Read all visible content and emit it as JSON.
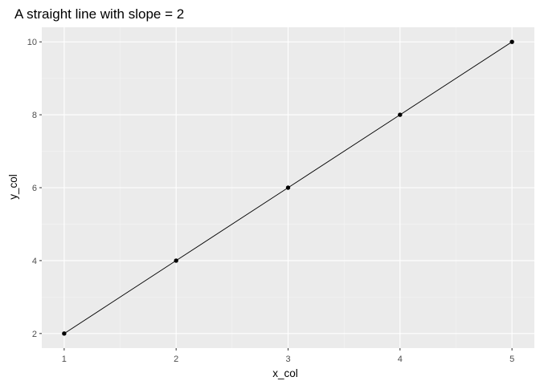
{
  "chart_data": {
    "type": "line",
    "title": "A straight line with slope = 2",
    "xlabel": "x_col",
    "ylabel": "y_col",
    "x": [
      1,
      2,
      3,
      4,
      5
    ],
    "series": [
      {
        "values": [
          2,
          4,
          6,
          8,
          10
        ],
        "markers": true
      }
    ],
    "xlim": [
      0.8,
      5.2
    ],
    "ylim": [
      1.6,
      10.4
    ],
    "xticks": [
      1,
      2,
      3,
      4,
      5
    ],
    "yticks": [
      2,
      4,
      6,
      8,
      10
    ],
    "xtick_labels": [
      "1",
      "2",
      "3",
      "4",
      "5"
    ],
    "ytick_labels": [
      "2",
      "4",
      "6",
      "8",
      "10"
    ],
    "grid": true,
    "theme": "ggplot2 grey",
    "colors": {
      "panel_background": "#ebebeb",
      "grid_major": "#ffffff",
      "grid_minor": "#f5f5f5",
      "line": "#000000",
      "points": "#000000",
      "tick_label": "#4d4d4d",
      "tick_mark": "#333333"
    }
  }
}
